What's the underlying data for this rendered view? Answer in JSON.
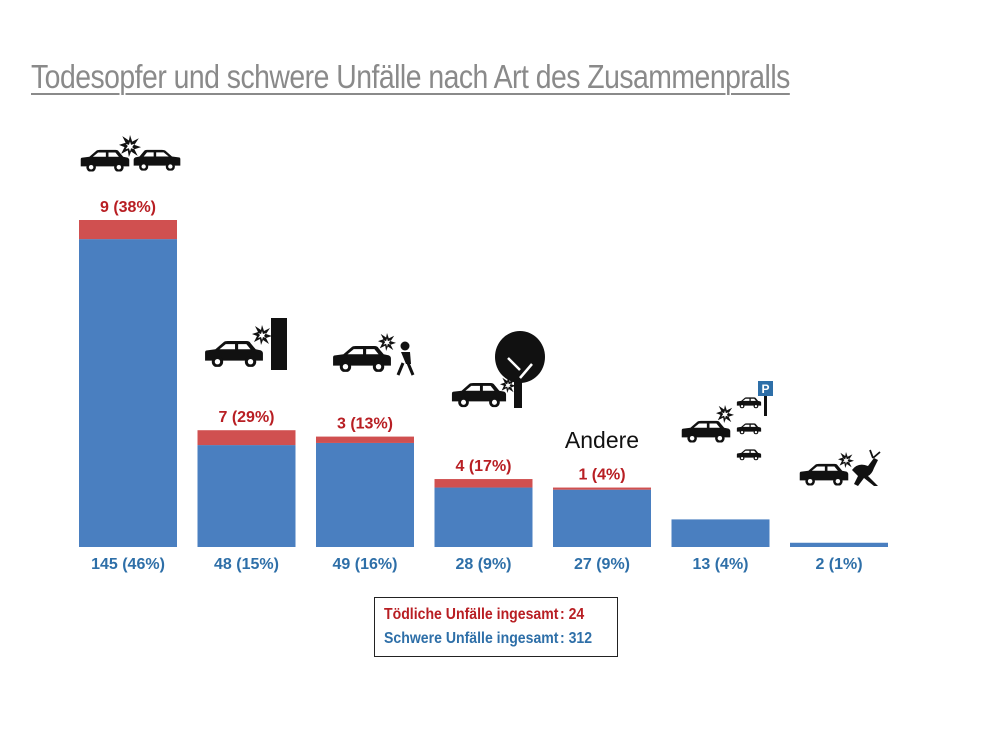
{
  "title": "Todesopfer und schwere Unfälle nach Art des Zusammenpralls",
  "colors": {
    "severe": "#4a7fc0",
    "fatal": "#d05050",
    "fatal_text": "#b81e23",
    "severe_text": "#2e6fa8",
    "icon": "#111111"
  },
  "chart_data": {
    "type": "bar",
    "stacked": true,
    "categories": [
      "",
      "",
      "",
      "",
      "Andere",
      "",
      ""
    ],
    "category_icons": [
      "car-collision-icon",
      "car-wall-collision-icon",
      "car-pedestrian-collision-icon",
      "car-tree-collision-icon",
      "",
      "car-parked-cars-collision-icon",
      "car-deer-collision-icon"
    ],
    "series": [
      {
        "key": "severe",
        "values": [
          145,
          48,
          49,
          28,
          27,
          13,
          2
        ],
        "labels": [
          "145 (46%)",
          "48 (15%)",
          "49 (16%)",
          "28 (9%)",
          "27 (9%)",
          "13 (4%)",
          "2 (1%)"
        ]
      },
      {
        "key": "fatal",
        "values": [
          9,
          7,
          3,
          4,
          1,
          0,
          0
        ],
        "labels": [
          "9 (38%)",
          "7 (29%)",
          "3 (13%)",
          "4 (17%)",
          "1 (4%)",
          "",
          ""
        ]
      }
    ],
    "ylim": [
      0,
      154
    ]
  },
  "legend": {
    "fatal_label": "Tödliche Unfälle ingesamt",
    "fatal_value": ": 24",
    "severe_label": "Schwere Unfälle ingesamt",
    "severe_value": ": 312"
  }
}
